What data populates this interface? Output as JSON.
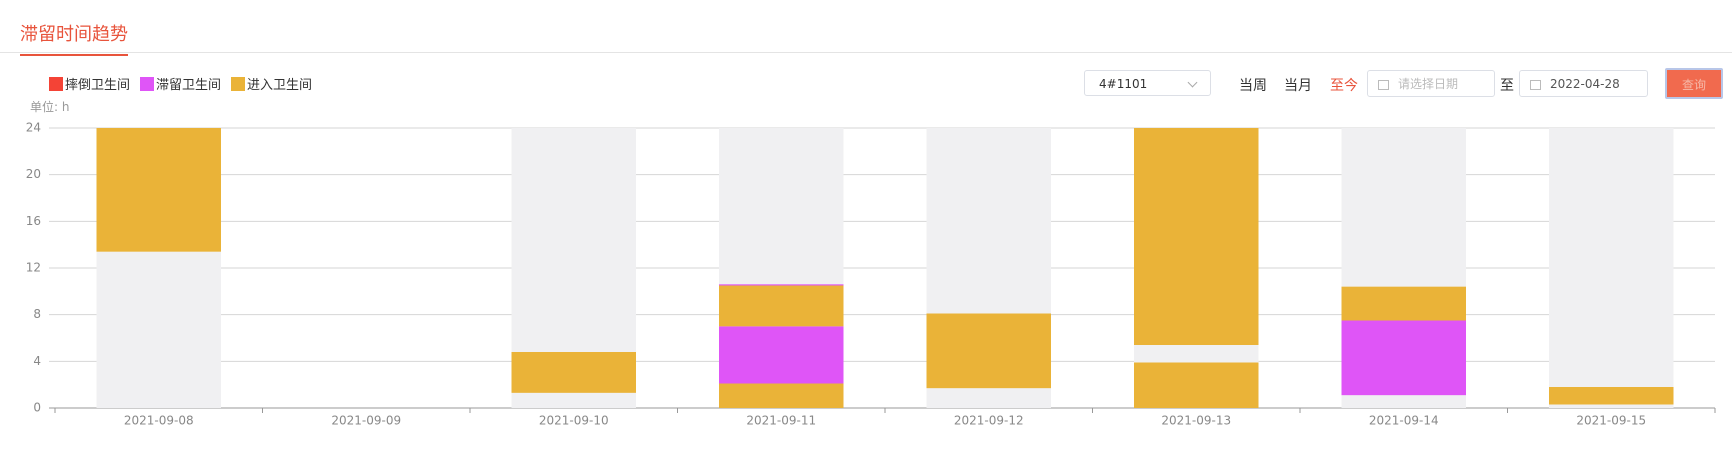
{
  "header": {
    "title": "滞留时间趋势"
  },
  "controls": {
    "device": "4#1101",
    "week": "当周",
    "month": "当月",
    "to_now": "至今",
    "start_placeholder": "请选择日期",
    "to": "至",
    "end_date": "2022-04-28",
    "search": "查询"
  },
  "chart_data": {
    "type": "range-bar",
    "unit_label": "单位: h",
    "categories": [
      "2021-09-08",
      "2021-09-09",
      "2021-09-10",
      "2021-09-11",
      "2021-09-12",
      "2021-09-13",
      "2021-09-14",
      "2021-09-15"
    ],
    "series": [
      {
        "name": "摔倒卫生间",
        "color": "#f44336",
        "values": [
          [],
          [],
          [],
          [],
          [],
          [],
          [],
          []
        ]
      },
      {
        "name": "滞留卫生间",
        "color": "#df55f7",
        "values": [
          [],
          [],
          [],
          [
            [
              2.1,
              7.0
            ],
            [
              10.5,
              10.6
            ]
          ],
          [],
          [],
          [
            [
              1.1,
              7.5
            ],
            [
              9.8,
              9.9
            ]
          ],
          []
        ]
      },
      {
        "name": "进入卫生间",
        "color": "#eab338",
        "values": [
          [
            [
              13.4,
              24
            ]
          ],
          [],
          [
            [
              1.3,
              4.8
            ]
          ],
          [
            [
              0,
              2.1
            ],
            [
              7.0,
              10.5
            ]
          ],
          [
            [
              1.7,
              8.1
            ]
          ],
          [
            [
              0,
              3.9
            ],
            [
              5.4,
              24
            ]
          ],
          [
            [
              7.5,
              10.4
            ]
          ],
          [
            [
              0.3,
              1.8
            ]
          ]
        ]
      }
    ],
    "ylim": [
      0,
      24
    ],
    "yticks": [
      0,
      4,
      8,
      12,
      16,
      20,
      24
    ],
    "grid": true
  }
}
